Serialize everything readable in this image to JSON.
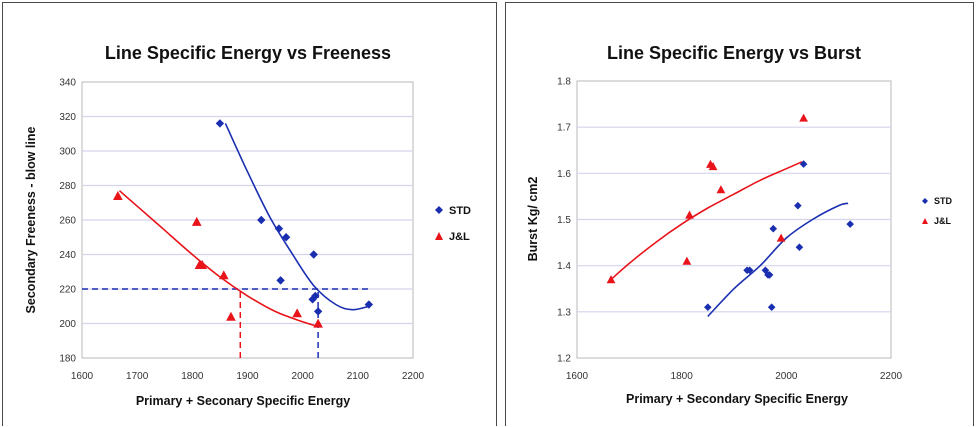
{
  "colors": {
    "STD": "#1a2fb0",
    "J&L": "#e8141a",
    "grid": "#d4d4ee",
    "plot_bg": "#ffffff"
  },
  "chart_data": [
    {
      "type": "scatter",
      "title": "Line Specific Energy vs Freeness",
      "xlabel": "Primary + Seconary Specific Energy",
      "ylabel": "Secondary Freeness - blow line",
      "xlim": [
        1600,
        2200
      ],
      "ylim": [
        180,
        340
      ],
      "xticks": [
        "1600",
        "1700",
        "1800",
        "1900",
        "2000",
        "2100",
        "2200"
      ],
      "yticks": [
        "180",
        "200",
        "220",
        "240",
        "260",
        "280",
        "300",
        "320",
        "340"
      ],
      "grid": true,
      "legend_position": "right",
      "series": [
        {
          "name": "STD",
          "marker": "diamond",
          "points": [
            [
              1850,
              316
            ],
            [
              1925,
              260
            ],
            [
              1957,
              255
            ],
            [
              1970,
              250
            ],
            [
              1960,
              225
            ],
            [
              2020,
              240
            ],
            [
              2018,
              214
            ],
            [
              2023,
              216
            ],
            [
              2028,
              207
            ],
            [
              2120,
              211
            ]
          ],
          "trendline": [
            [
              1860,
              316
            ],
            [
              1900,
              288
            ],
            [
              1940,
              262
            ],
            [
              1980,
              241
            ],
            [
              2020,
              222
            ],
            [
              2060,
              211
            ],
            [
              2090,
              208
            ],
            [
              2120,
              210
            ]
          ]
        },
        {
          "name": "J&L",
          "marker": "triangle",
          "points": [
            [
              1665,
              274
            ],
            [
              1808,
              259
            ],
            [
              1813,
              234
            ],
            [
              1818,
              234
            ],
            [
              1857,
              228
            ],
            [
              1870,
              204
            ],
            [
              1990,
              206
            ],
            [
              2028,
              200
            ]
          ],
          "trendline": [
            [
              1668,
              277
            ],
            [
              1700,
              268
            ],
            [
              1750,
              254
            ],
            [
              1800,
              240
            ],
            [
              1850,
              227
            ],
            [
              1900,
              216
            ],
            [
              1950,
              207
            ],
            [
              2000,
              201
            ],
            [
              2030,
              198
            ]
          ]
        }
      ],
      "reference_lines": [
        {
          "color": "blue",
          "path": [
            [
              1600,
              220
            ],
            [
              2120,
              220
            ]
          ]
        },
        {
          "color": "red",
          "path": [
            [
              1887,
              180
            ],
            [
              1887,
              220
            ]
          ]
        },
        {
          "color": "blue",
          "path": [
            [
              2028,
              180
            ],
            [
              2028,
              220
            ]
          ]
        }
      ]
    },
    {
      "type": "scatter",
      "title": "Line Specific Energy vs Burst",
      "xlabel": "Primary + Secondary Specific Energy",
      "ylabel": "Burst Kg/ cm2",
      "xlim": [
        1600,
        2200
      ],
      "ylim": [
        1.2,
        1.8
      ],
      "xticks": [
        "1600",
        "1800",
        "2000",
        "2200"
      ],
      "yticks": [
        "1.2",
        "1.3",
        "1.4",
        "1.5",
        "1.6",
        "1.7",
        "1.8"
      ],
      "grid": true,
      "legend_position": "right",
      "series": [
        {
          "name": "STD",
          "marker": "diamond",
          "points": [
            [
              1850,
              1.31
            ],
            [
              1925,
              1.39
            ],
            [
              1930,
              1.39
            ],
            [
              1960,
              1.39
            ],
            [
              1965,
              1.38
            ],
            [
              1968,
              1.38
            ],
            [
              1972,
              1.31
            ],
            [
              1975,
              1.48
            ],
            [
              2022,
              1.53
            ],
            [
              2025,
              1.44
            ],
            [
              2033,
              1.62
            ],
            [
              2122,
              1.49
            ]
          ],
          "trendline": [
            [
              1850,
              1.29
            ],
            [
              1900,
              1.35
            ],
            [
              1950,
              1.4
            ],
            [
              2000,
              1.46
            ],
            [
              2050,
              1.5
            ],
            [
              2100,
              1.53
            ],
            [
              2118,
              1.535
            ]
          ]
        },
        {
          "name": "J&L",
          "marker": "triangle",
          "points": [
            [
              1665,
              1.37
            ],
            [
              1810,
              1.41
            ],
            [
              1815,
              1.51
            ],
            [
              1855,
              1.62
            ],
            [
              1860,
              1.615
            ],
            [
              1875,
              1.565
            ],
            [
              1990,
              1.46
            ],
            [
              2033,
              1.72
            ]
          ],
          "trendline": [
            [
              1665,
              1.37
            ],
            [
              1700,
              1.405
            ],
            [
              1750,
              1.45
            ],
            [
              1800,
              1.49
            ],
            [
              1850,
              1.525
            ],
            [
              1900,
              1.555
            ],
            [
              1950,
              1.585
            ],
            [
              2000,
              1.61
            ],
            [
              2030,
              1.625
            ]
          ]
        }
      ]
    }
  ]
}
